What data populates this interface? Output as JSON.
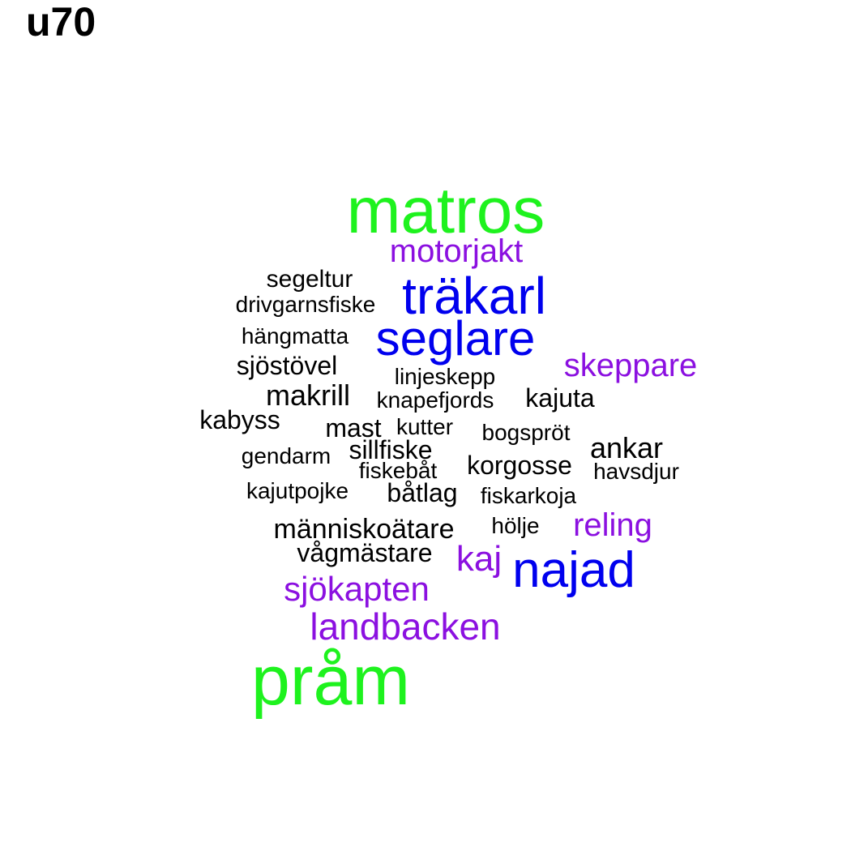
{
  "title": "u70",
  "colors": {
    "green": "#1ef21e",
    "blue": "#0000ee",
    "purple": "#8b10e0",
    "black": "#000000"
  },
  "words": [
    {
      "text": "matros",
      "color": "green"
    },
    {
      "text": "motorjakt",
      "color": "purple"
    },
    {
      "text": "segeltur",
      "color": "black"
    },
    {
      "text": "träkarl",
      "color": "blue"
    },
    {
      "text": "drivgarnsfiske",
      "color": "black"
    },
    {
      "text": "hängmatta",
      "color": "black"
    },
    {
      "text": "seglare",
      "color": "blue"
    },
    {
      "text": "sjöstövel",
      "color": "black"
    },
    {
      "text": "skeppare",
      "color": "purple"
    },
    {
      "text": "linjeskepp",
      "color": "black"
    },
    {
      "text": "makrill",
      "color": "black"
    },
    {
      "text": "knapefjords",
      "color": "black"
    },
    {
      "text": "kajuta",
      "color": "black"
    },
    {
      "text": "kabyss",
      "color": "black"
    },
    {
      "text": "mast",
      "color": "black"
    },
    {
      "text": "kutter",
      "color": "black"
    },
    {
      "text": "bogspröt",
      "color": "black"
    },
    {
      "text": "ankar",
      "color": "black"
    },
    {
      "text": "gendarm",
      "color": "black"
    },
    {
      "text": "sillfiske",
      "color": "black"
    },
    {
      "text": "korgosse",
      "color": "black"
    },
    {
      "text": "fiskebåt",
      "color": "black"
    },
    {
      "text": "havsdjur",
      "color": "black"
    },
    {
      "text": "kajutpojke",
      "color": "black"
    },
    {
      "text": "båtlag",
      "color": "black"
    },
    {
      "text": "fiskarkoja",
      "color": "black"
    },
    {
      "text": "reling",
      "color": "purple"
    },
    {
      "text": "människoätare",
      "color": "black"
    },
    {
      "text": "hölje",
      "color": "black"
    },
    {
      "text": "vågmästare",
      "color": "black"
    },
    {
      "text": "kaj",
      "color": "purple"
    },
    {
      "text": "najad",
      "color": "blue"
    },
    {
      "text": "sjökapten",
      "color": "purple"
    },
    {
      "text": "landbacken",
      "color": "purple"
    },
    {
      "text": "pråm",
      "color": "green"
    }
  ]
}
